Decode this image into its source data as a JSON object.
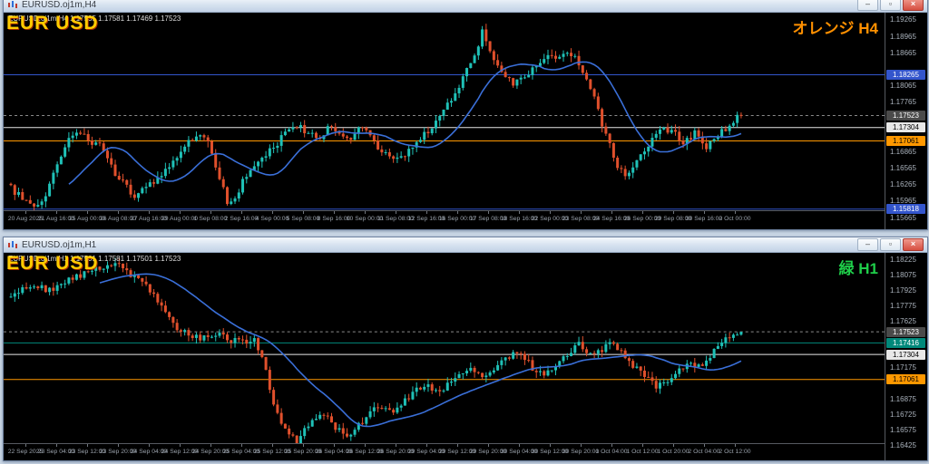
{
  "app": {
    "mdi_background": "#c9d6e5"
  },
  "windows": [
    {
      "id": "h4",
      "title": "EURUSD.oj1m,H4",
      "symbol_label": "EUR USD",
      "corner_label": "オレンジ H4",
      "corner_label_color": "#ff9000",
      "ohlc": {
        "open": "1.17535",
        "high": "1.17581",
        "low": "1.17469",
        "close": "1.17523"
      },
      "window_buttons": [
        {
          "name": "minimize",
          "glyph": "–"
        },
        {
          "name": "restore",
          "glyph": "▫"
        },
        {
          "name": "close",
          "glyph": "×"
        }
      ],
      "chart": {
        "type": "candlestick",
        "timeframe": "H4",
        "up_color": "#1fc1b7",
        "down_color": "#e0502c",
        "ma_color": "#3a6fd8",
        "ma_period": 16,
        "candle_count": 190,
        "noise": 0.0014,
        "seed": 11,
        "y_ticks": [
          "1.19265",
          "1.18965",
          "1.18665",
          "1.18365",
          "1.18065",
          "1.17765",
          "1.17465",
          "1.17165",
          "1.16865",
          "1.16565",
          "1.16265",
          "1.15965",
          "1.15665"
        ],
        "x_labels": [
          "20 Aug 2025",
          "21 Aug 16:00",
          "25 Aug 00:00",
          "26 Aug 08:00",
          "27 Aug 16:00",
          "29 Aug 00:00",
          "1 Sep 08:00",
          "2 Sep 16:00",
          "4 Sep 00:00",
          "5 Sep 08:00",
          "8 Sep 16:00",
          "10 Sep 00:00",
          "11 Sep 08:00",
          "12 Sep 16:00",
          "16 Sep 00:00",
          "17 Sep 08:00",
          "18 Sep 16:00",
          "22 Sep 00:00",
          "23 Sep 08:00",
          "24 Sep 16:00",
          "26 Sep 00:00",
          "29 Sep 08:00",
          "30 Sep 16:00",
          "2 Oct 00:00"
        ],
        "levels": [
          {
            "price": 1.18265,
            "text": "1.18265",
            "color": "#3355cc",
            "text_color": "#ffffff"
          },
          {
            "price": 1.17304,
            "text": "1.17304",
            "color": "#e8e8e8",
            "text_color": "#000000"
          },
          {
            "price": 1.17061,
            "text": "1.17061",
            "color": "#ff9800",
            "text_color": "#000000"
          },
          {
            "price": 1.15818,
            "text": "1.15818",
            "color": "#3355cc",
            "text_color": "#ffffff"
          }
        ],
        "current": {
          "price": 1.17523,
          "text": "1.17523",
          "color": "#4a4a4a",
          "text_color": "#ffffff"
        },
        "price_path": {
          "indices": [
            0,
            4,
            7,
            10,
            14,
            17,
            20,
            24,
            28,
            33,
            37,
            41,
            45,
            49,
            52,
            55,
            57,
            59,
            63,
            68,
            73,
            76,
            80,
            84,
            88,
            92,
            96,
            100,
            103,
            107,
            111,
            115,
            119,
            122,
            123,
            125,
            128,
            131,
            134,
            137,
            140,
            143,
            146,
            149,
            152,
            155,
            158,
            160,
            163,
            166,
            169,
            172,
            175,
            178,
            181,
            184,
            187,
            190
          ],
          "prices": [
            1.1628,
            1.16,
            1.1588,
            1.161,
            1.168,
            1.1722,
            1.1712,
            1.1695,
            1.1648,
            1.1606,
            1.1628,
            1.1655,
            1.169,
            1.1715,
            1.1712,
            1.164,
            1.1596,
            1.1608,
            1.1652,
            1.169,
            1.1725,
            1.1732,
            1.1708,
            1.1736,
            1.1708,
            1.173,
            1.1692,
            1.1668,
            1.1678,
            1.171,
            1.1742,
            1.1778,
            1.184,
            1.188,
            1.1912,
            1.1872,
            1.1836,
            1.181,
            1.1822,
            1.1845,
            1.1858,
            1.186,
            1.1866,
            1.183,
            1.178,
            1.1718,
            1.166,
            1.1636,
            1.1668,
            1.17,
            1.1726,
            1.1729,
            1.1702,
            1.1722,
            1.1698,
            1.1712,
            1.1738,
            1.17523
          ]
        }
      }
    },
    {
      "id": "h1",
      "title": "EURUSD.oj1m,H1",
      "symbol_label": "EUR USD",
      "corner_label": "緑 H1",
      "corner_label_color": "#1fce4a",
      "ohlc": {
        "open": "1.17501",
        "high": "1.17581",
        "low": "1.17501",
        "close": "1.17523"
      },
      "window_buttons": [
        {
          "name": "minimize",
          "glyph": "–"
        },
        {
          "name": "restore",
          "glyph": "▫"
        },
        {
          "name": "close",
          "glyph": "×"
        }
      ],
      "chart": {
        "type": "candlestick",
        "timeframe": "H1",
        "up_color": "#1fc1b7",
        "down_color": "#e0502c",
        "ma_color": "#3a6fd8",
        "ma_period": 24,
        "candle_count": 190,
        "noise": 0.0007,
        "seed": 5,
        "y_ticks": [
          "1.18225",
          "1.18075",
          "1.17925",
          "1.17775",
          "1.17625",
          "1.17475",
          "1.17325",
          "1.17175",
          "1.17025",
          "1.16875",
          "1.16725",
          "1.16575",
          "1.16425"
        ],
        "x_labels": [
          "22 Sep 2025",
          "23 Sep 04:00",
          "23 Sep 12:00",
          "23 Sep 20:00",
          "24 Sep 04:00",
          "24 Sep 12:00",
          "24 Sep 20:00",
          "25 Sep 04:00",
          "25 Sep 12:00",
          "25 Sep 20:00",
          "26 Sep 04:00",
          "26 Sep 12:00",
          "26 Sep 20:00",
          "29 Sep 04:00",
          "29 Sep 12:00",
          "29 Sep 20:00",
          "30 Sep 04:00",
          "30 Sep 12:00",
          "30 Sep 20:00",
          "1 Oct 04:00",
          "1 Oct 12:00",
          "1 Oct 20:00",
          "2 Oct 04:00",
          "2 Oct 12:00"
        ],
        "levels": [
          {
            "price": 1.17416,
            "text": "1.17416",
            "color": "#00897b",
            "text_color": "#ffffff"
          },
          {
            "price": 1.17304,
            "text": "1.17304",
            "color": "#e8e8e8",
            "text_color": "#000000"
          },
          {
            "price": 1.17061,
            "text": "1.17061",
            "color": "#ff9800",
            "text_color": "#000000"
          }
        ],
        "current": {
          "price": 1.17523,
          "text": "1.17523",
          "color": "#4a4a4a",
          "text_color": "#ffffff"
        },
        "price_path": {
          "indices": [
            0,
            6,
            12,
            18,
            24,
            28,
            32,
            36,
            40,
            44,
            48,
            54,
            60,
            64,
            66,
            68,
            70,
            73,
            75,
            78,
            82,
            85,
            88,
            92,
            96,
            100,
            104,
            108,
            112,
            116,
            120,
            124,
            128,
            132,
            136,
            140,
            144,
            148,
            152,
            156,
            160,
            164,
            168,
            172,
            176,
            180,
            183,
            186,
            190
          ],
          "prices": [
            1.1786,
            1.1797,
            1.1792,
            1.1806,
            1.1815,
            1.1818,
            1.1808,
            1.18,
            1.1775,
            1.1757,
            1.1746,
            1.175,
            1.1742,
            1.1745,
            1.1728,
            1.1698,
            1.1672,
            1.1652,
            1.1646,
            1.1662,
            1.1672,
            1.166,
            1.165,
            1.1665,
            1.168,
            1.1672,
            1.169,
            1.17,
            1.1692,
            1.171,
            1.1718,
            1.1708,
            1.1722,
            1.1732,
            1.1718,
            1.1712,
            1.1726,
            1.174,
            1.173,
            1.1742,
            1.1728,
            1.1712,
            1.1698,
            1.1708,
            1.1722,
            1.1716,
            1.1734,
            1.1748,
            1.17523
          ]
        }
      }
    }
  ]
}
